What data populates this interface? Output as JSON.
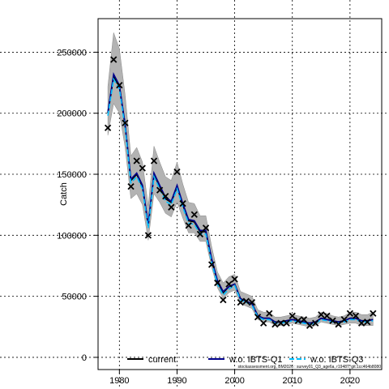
{
  "chart_data": {
    "type": "line",
    "ylabel": "Catch",
    "xlabel": "",
    "xlim": [
      1976.3,
      2025.5
    ],
    "ylim": [
      -10000,
      277500
    ],
    "x_ticks": [
      1980,
      1990,
      2000,
      2010,
      2020
    ],
    "y_ticks": [
      0,
      50000,
      100000,
      150000,
      200000,
      250000
    ],
    "x_tick_labels": [
      "1980",
      "1990",
      "2000",
      "2010",
      "2020"
    ],
    "y_tick_labels": [
      "0",
      "50000",
      "100000",
      "150000",
      "200000",
      "250000"
    ],
    "grid": true,
    "legend_position": "bottom",
    "footnote": "stockassessment.org, BM2026 : survey01_Q3_age6a, r1948T, git:1cc464b8080",
    "legend": [
      {
        "label": "current",
        "color": "#000000",
        "dash": "none"
      },
      {
        "label": "w.o. IBTS-Q1",
        "color": "#00008b",
        "dash": "none"
      },
      {
        "label": "w.o. IBTS-Q3",
        "color": "#00bfff",
        "dash": "6,3"
      }
    ],
    "series": [
      {
        "name": "observed",
        "marker": "x",
        "color": "#000000",
        "x": [
          1978,
          1979,
          1980,
          1981,
          1982,
          1983,
          1984,
          1985,
          1986,
          1987,
          1988,
          1989,
          1990,
          1991,
          1992,
          1993,
          1994,
          1995,
          1996,
          1997,
          1998,
          1999,
          2000,
          2001,
          2002,
          2003,
          2004,
          2005,
          2006,
          2007,
          2008,
          2009,
          2010,
          2011,
          2012,
          2013,
          2014,
          2015,
          2016,
          2017,
          2018,
          2019,
          2020,
          2021,
          2022,
          2023,
          2024
        ],
        "values": [
          188000,
          244000,
          223000,
          192000,
          140000,
          161000,
          155000,
          100000,
          161000,
          137000,
          132000,
          123000,
          152000,
          126000,
          108000,
          117000,
          101000,
          106000,
          76000,
          61000,
          47000,
          60000,
          64000,
          45000,
          46000,
          45000,
          33000,
          28000,
          36000,
          27000,
          28000,
          28000,
          34000,
          30000,
          31000,
          26000,
          28000,
          35000,
          34000,
          30000,
          27000,
          31000,
          36000,
          34000,
          28000,
          29000,
          36000
        ]
      },
      {
        "name": "current",
        "color": "#000000",
        "x": [
          1978,
          1979,
          1980,
          1981,
          1982,
          1983,
          1984,
          1985,
          1986,
          1987,
          1988,
          1989,
          1990,
          1991,
          1992,
          1993,
          1994,
          1995,
          1996,
          1997,
          1998,
          1999,
          2000,
          2001,
          2002,
          2003,
          2004,
          2005,
          2006,
          2007,
          2008,
          2009,
          2010,
          2011,
          2012,
          2013,
          2014,
          2015,
          2016,
          2017,
          2018,
          2019,
          2020,
          2021,
          2022,
          2023,
          2024
        ],
        "values": [
          200000,
          230000,
          222000,
          190000,
          145000,
          150000,
          140000,
          108000,
          150000,
          140000,
          130000,
          127000,
          140000,
          125000,
          112000,
          111000,
          103000,
          103000,
          80000,
          62000,
          53000,
          58000,
          60000,
          48000,
          46000,
          44000,
          34000,
          32000,
          32000,
          29000,
          29000,
          30000,
          31000,
          30000,
          29000,
          28000,
          29000,
          32000,
          31000,
          30000,
          29000,
          30000,
          32000,
          32000,
          30000,
          30000,
          31000
        ]
      },
      {
        "name": "w.o. IBTS-Q1",
        "color": "#00008b",
        "x": [
          1978,
          1979,
          1980,
          1981,
          1982,
          1983,
          1984,
          1985,
          1986,
          1987,
          1988,
          1989,
          1990,
          1991,
          1992,
          1993,
          1994,
          1995,
          1996,
          1997,
          1998,
          1999,
          2000,
          2001,
          2002,
          2003,
          2004,
          2005,
          2006,
          2007,
          2008,
          2009,
          2010,
          2011,
          2012,
          2013,
          2014,
          2015,
          2016,
          2017,
          2018,
          2019,
          2020,
          2021,
          2022,
          2023,
          2024
        ],
        "values": [
          201000,
          232000,
          223000,
          191000,
          146000,
          151000,
          141000,
          109000,
          151000,
          141000,
          131000,
          128000,
          141000,
          126000,
          113000,
          112000,
          104000,
          104000,
          81000,
          63000,
          54000,
          58000,
          60000,
          48000,
          46000,
          44000,
          34000,
          32000,
          32000,
          29000,
          29000,
          30000,
          31000,
          30000,
          29000,
          28000,
          29000,
          32000,
          31000,
          30000,
          29000,
          30000,
          32000,
          32000,
          30000,
          30000,
          31000
        ]
      },
      {
        "name": "w.o. IBTS-Q3",
        "color": "#00bfff",
        "x": [
          1978,
          1979,
          1980,
          1981,
          1982,
          1983,
          1984,
          1985,
          1986,
          1987,
          1988,
          1989,
          1990,
          1991,
          1992,
          1993,
          1994,
          1995,
          1996,
          1997,
          1998,
          1999,
          2000,
          2001,
          2002,
          2003,
          2004,
          2005,
          2006,
          2007,
          2008,
          2009,
          2010,
          2011,
          2012,
          2013,
          2014,
          2015,
          2016,
          2017,
          2018,
          2019,
          2020,
          2021,
          2022,
          2023,
          2024
        ],
        "values": [
          198000,
          228000,
          220000,
          188000,
          143000,
          148000,
          138000,
          106000,
          148000,
          138000,
          128000,
          125000,
          138000,
          123000,
          110000,
          109000,
          101000,
          101000,
          78000,
          60000,
          51000,
          56000,
          59000,
          47000,
          45000,
          43000,
          33000,
          31000,
          31000,
          28000,
          28000,
          29000,
          30000,
          29000,
          28000,
          27000,
          28000,
          31000,
          30000,
          29000,
          28000,
          29000,
          31000,
          31000,
          29000,
          29000,
          30000
        ]
      }
    ],
    "band": {
      "name": "confidence interval",
      "color": "#b3b3b3",
      "x": [
        1978,
        1979,
        1980,
        1981,
        1982,
        1983,
        1984,
        1985,
        1986,
        1987,
        1988,
        1989,
        1990,
        1991,
        1992,
        1993,
        1994,
        1995,
        1996,
        1997,
        1998,
        1999,
        2000,
        2001,
        2002,
        2003,
        2004,
        2005,
        2006,
        2007,
        2008,
        2009,
        2010,
        2011,
        2012,
        2013,
        2014,
        2015,
        2016,
        2017,
        2018,
        2019,
        2020,
        2021,
        2022,
        2023,
        2024
      ],
      "lower": [
        182000,
        208000,
        200000,
        172000,
        130000,
        134000,
        125000,
        96000,
        134000,
        127000,
        118000,
        115000,
        127000,
        114000,
        102000,
        102000,
        95000,
        95000,
        74000,
        57000,
        48000,
        53000,
        55000,
        44000,
        42000,
        40000,
        31000,
        29000,
        29000,
        26000,
        26000,
        27000,
        28000,
        27000,
        26000,
        25000,
        26000,
        29000,
        28000,
        27000,
        26000,
        27000,
        28000,
        28000,
        26000,
        26000,
        26000
      ],
      "upper": [
        222000,
        266000,
        253000,
        215000,
        165000,
        172000,
        160000,
        124000,
        173000,
        160000,
        148000,
        145000,
        160000,
        142000,
        127000,
        126000,
        116000,
        116000,
        91000,
        70000,
        61000,
        66000,
        68000,
        54000,
        52000,
        50000,
        39000,
        37000,
        37000,
        33000,
        33000,
        34000,
        35000,
        34000,
        33000,
        32000,
        33000,
        37000,
        36000,
        34000,
        33000,
        34000,
        37000,
        37000,
        35000,
        35000,
        37000
      ]
    }
  }
}
